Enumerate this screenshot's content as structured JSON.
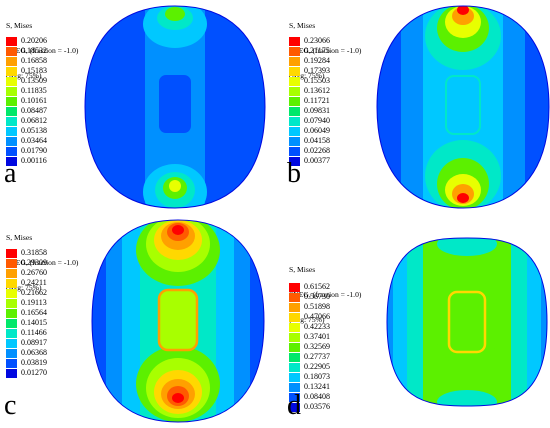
{
  "panels": [
    {
      "label": "a",
      "title_lines": [
        "S, Mises",
        "SNEG, (fraction = -1.0)",
        "(Avg: 75%)"
      ],
      "values": [
        "0.20206",
        "0.18532",
        "0.16858",
        "0.15183",
        "0.13509",
        "0.11835",
        "0.10161",
        "0.08487",
        "0.06812",
        "0.05138",
        "0.03464",
        "0.01790",
        "0.00116"
      ]
    },
    {
      "label": "b",
      "title_lines": [
        "S, Mises",
        "SNEG, (fraction = -1.0)",
        "(Avg: 75%)"
      ],
      "values": [
        "0.23066",
        "0.21175",
        "0.19284",
        "0.17393",
        "0.15503",
        "0.13612",
        "0.11721",
        "0.09831",
        "0.07940",
        "0.06049",
        "0.04158",
        "0.02268",
        "0.00377"
      ]
    },
    {
      "label": "c",
      "title_lines": [
        "S, Mises",
        "SNEG, (fraction = -1.0)",
        "(Avg: 75%)"
      ],
      "values": [
        "0.31858",
        "0.29309",
        "0.26760",
        "0.24211",
        "0.21662",
        "0.19113",
        "0.16564",
        "0.14015",
        "0.11466",
        "0.08917",
        "0.06368",
        "0.03819",
        "0.01270"
      ]
    },
    {
      "label": "d",
      "title_lines": [
        "S, Mises",
        "SNEG, (fraction = -1.0)",
        "(Avg: 75%)"
      ],
      "values": [
        "0.61562",
        "0.56730",
        "0.51898",
        "0.47066",
        "0.42233",
        "0.37401",
        "0.32569",
        "0.27737",
        "0.22905",
        "0.18073",
        "0.13241",
        "0.08408",
        "0.03576"
      ]
    }
  ],
  "colors": {
    "scale": [
      "#ff0000",
      "#ff5a00",
      "#ffa000",
      "#ffd800",
      "#e8ff00",
      "#a8ff00",
      "#5cf000",
      "#00e86a",
      "#00e8c8",
      "#00c8ff",
      "#0090ff",
      "#0050ff",
      "#0008e0"
    ]
  }
}
